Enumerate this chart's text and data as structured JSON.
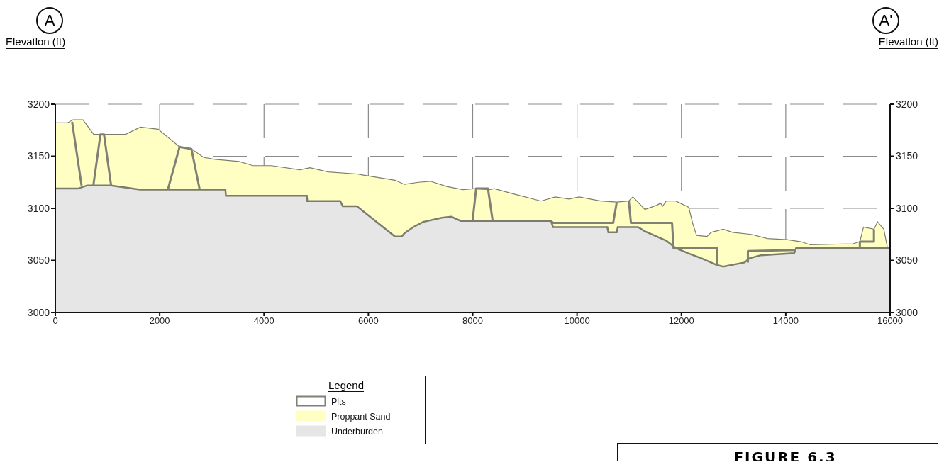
{
  "chart_data": {
    "type": "area",
    "ylabel": "Elevatlon (ft)",
    "y2label": "Elevatlon (ft)",
    "annotations": [
      "A",
      "A'",
      "FIGURE 6.3"
    ],
    "legend_title": "Legend",
    "xlim": [
      0,
      16000
    ],
    "xticks": [
      0,
      2000,
      4000,
      6000,
      8000,
      10000,
      12000,
      14000,
      16000
    ],
    "ylim": [
      3000,
      3200
    ],
    "yticks": [
      3000,
      3050,
      3100,
      3150,
      3200
    ],
    "y2lim": [
      3000,
      3200
    ],
    "y2ticks": [
      3000,
      3050,
      3100,
      3150,
      3200
    ],
    "grid": true,
    "legend": "bottom",
    "series": [
      {
        "name": "Plts",
        "type": "line",
        "color": "#808074",
        "x": [
          322,
          503,
          600,
          729,
          865,
          933,
          1069,
          1500,
          2156,
          2382,
          2609,
          2767,
          5000,
          7998,
          8066,
          8292,
          8383,
          9000,
          9500,
          9540,
          10693,
          10761,
          10900,
          10992,
          11033,
          11821,
          11848,
          12685,
          12685,
          13000,
          13274,
          13274,
          14200,
          14800,
          15420,
          15420,
          15690,
          15690
        ],
        "values": [
          3183,
          3122,
          null,
          3122,
          3171,
          3171,
          3122,
          null,
          3118,
          3159,
          3157,
          3118,
          null,
          3088,
          3119,
          3119,
          3088,
          null,
          3088,
          3086,
          3086,
          3106,
          null,
          3107,
          3086,
          3086,
          3062,
          3062,
          3045,
          null,
          3048,
          3059,
          3060,
          null,
          3062,
          3068,
          3068,
          3080
        ]
      },
      {
        "name": "Proppant Sand",
        "color": "#ffffc4",
        "x": [
          0,
          231,
          340,
          530,
          735,
          1345,
          1630,
          1970,
          2380,
          2610,
          2840,
          3060,
          3520,
          3790,
          4140,
          4690,
          4880,
          5230,
          5780,
          6010,
          6510,
          6690,
          6960,
          7190,
          7500,
          7810,
          8050,
          8320,
          8410,
          8770,
          9310,
          9580,
          9850,
          10040,
          10450,
          10760,
          10990,
          11070,
          11300,
          11530,
          11600,
          11640,
          11710,
          11890,
          12140,
          12220,
          12290,
          12490,
          12570,
          12800,
          12980,
          13340,
          13650,
          14020,
          14290,
          14470,
          15290,
          15420,
          15490,
          15690,
          15760,
          15880,
          15950,
          16000
        ],
        "values": [
          3182,
          3182,
          3185,
          3185,
          3171,
          3171,
          3178,
          3176,
          3159,
          3157,
          3149,
          3147,
          3145,
          3141,
          3141,
          3137,
          3139,
          3135,
          3133,
          3131,
          3127,
          3123,
          3125,
          3126,
          3121,
          3118,
          3119,
          3118,
          3119,
          3114,
          3107,
          3111,
          3109,
          3111,
          3107,
          3106,
          3107,
          3111,
          3099,
          3103,
          3105,
          3102,
          3107,
          3107,
          3101,
          3085,
          3074,
          3073,
          3077,
          3080,
          3077,
          3075,
          3071,
          3070,
          3068,
          3065,
          3066,
          3068,
          3082,
          3080,
          3087,
          3080,
          3062,
          3062
        ]
      },
      {
        "name": "Underburden",
        "color": "#e6e6e6",
        "x": [
          0,
          435,
          610,
          1070,
          1620,
          3260,
          3270,
          4820,
          4830,
          5460,
          5510,
          5780,
          6510,
          6640,
          6690,
          6860,
          7050,
          7410,
          7590,
          7770,
          9500,
          9540,
          10580,
          10600,
          10760,
          10780,
          11170,
          11300,
          11710,
          11890,
          12120,
          12390,
          12660,
          12800,
          13210,
          13300,
          13520,
          14160,
          14200,
          16000
        ],
        "values": [
          3119,
          3119,
          3122,
          3122,
          3118,
          3118,
          3112,
          3112,
          3107,
          3107,
          3102,
          3102,
          3073,
          3073,
          3076,
          3082,
          3087,
          3091,
          3092,
          3088,
          3088,
          3082,
          3082,
          3077,
          3077,
          3082,
          3082,
          3078,
          3069,
          3062,
          3057,
          3052,
          3046,
          3044,
          3048,
          3052,
          3055,
          3057,
          3062,
          3062
        ]
      }
    ]
  }
}
